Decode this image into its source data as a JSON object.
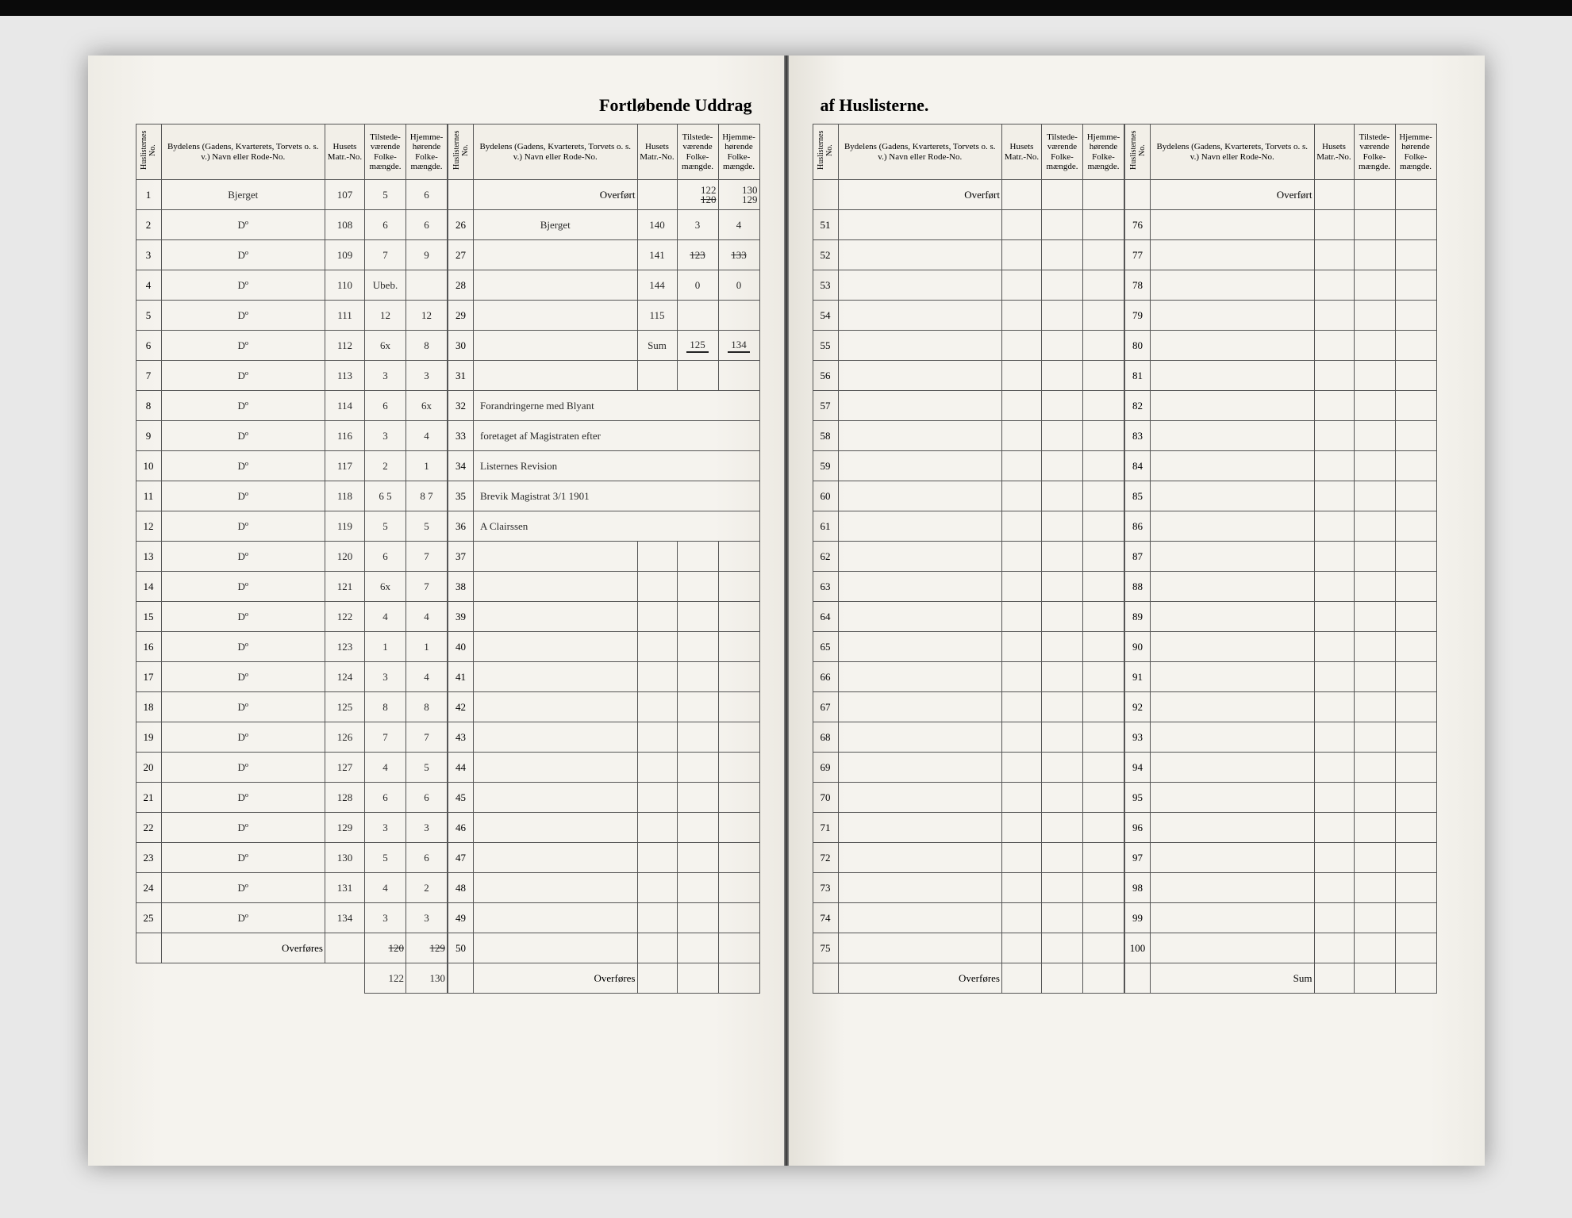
{
  "document": {
    "title_left": "Fortløbende Uddrag",
    "title_right": "af Huslisterne.",
    "headers": {
      "huslist_no": "Huslisternes No.",
      "bydel": "Bydelens (Gadens, Kvarterets, Torvets o. s. v.) Navn eller Rode-No.",
      "matr": "Husets Matr.-No.",
      "tilstede": "Tilstede-værende Folke-mængde.",
      "hjemme": "Hjemme-hørende Folke-mængde."
    },
    "overfort_label": "Overført",
    "overfores_label": "Overføres",
    "sum_label": "Sum"
  },
  "left_page": {
    "block_a": {
      "rows": [
        {
          "n": "1",
          "name": "Bjerget",
          "matr": "107",
          "t": "5",
          "h": "6"
        },
        {
          "n": "2",
          "name": "Dº",
          "matr": "108",
          "t": "6",
          "h": "6"
        },
        {
          "n": "3",
          "name": "Dº",
          "matr": "109",
          "t": "7",
          "h": "9"
        },
        {
          "n": "4",
          "name": "Dº",
          "matr": "110",
          "t": "Ubeb.",
          "h": ""
        },
        {
          "n": "5",
          "name": "Dº",
          "matr": "111",
          "t": "12",
          "h": "12"
        },
        {
          "n": "6",
          "name": "Dº",
          "matr": "112",
          "t": "6x",
          "h": "8"
        },
        {
          "n": "7",
          "name": "Dº",
          "matr": "113",
          "t": "3",
          "h": "3"
        },
        {
          "n": "8",
          "name": "Dº",
          "matr": "114",
          "t": "6",
          "h": "6x"
        },
        {
          "n": "9",
          "name": "Dº",
          "matr": "116",
          "t": "3",
          "h": "4"
        },
        {
          "n": "10",
          "name": "Dº",
          "matr": "117",
          "t": "2",
          "h": "1"
        },
        {
          "n": "11",
          "name": "Dº",
          "matr": "118",
          "t": "6 5",
          "h": "8 7"
        },
        {
          "n": "12",
          "name": "Dº",
          "matr": "119",
          "t": "5",
          "h": "5"
        },
        {
          "n": "13",
          "name": "Dº",
          "matr": "120",
          "t": "6",
          "h": "7"
        },
        {
          "n": "14",
          "name": "Dº",
          "matr": "121",
          "t": "6x",
          "h": "7"
        },
        {
          "n": "15",
          "name": "Dº",
          "matr": "122",
          "t": "4",
          "h": "4"
        },
        {
          "n": "16",
          "name": "Dº",
          "matr": "123",
          "t": "1",
          "h": "1"
        },
        {
          "n": "17",
          "name": "Dº",
          "matr": "124",
          "t": "3",
          "h": "4"
        },
        {
          "n": "18",
          "name": "Dº",
          "matr": "125",
          "t": "8",
          "h": "8"
        },
        {
          "n": "19",
          "name": "Dº",
          "matr": "126",
          "t": "7",
          "h": "7"
        },
        {
          "n": "20",
          "name": "Dº",
          "matr": "127",
          "t": "4",
          "h": "5"
        },
        {
          "n": "21",
          "name": "Dº",
          "matr": "128",
          "t": "6",
          "h": "6"
        },
        {
          "n": "22",
          "name": "Dº",
          "matr": "129",
          "t": "3",
          "h": "3"
        },
        {
          "n": "23",
          "name": "Dº",
          "matr": "130",
          "t": "5",
          "h": "6"
        },
        {
          "n": "24",
          "name": "Dº",
          "matr": "131",
          "t": "4",
          "h": "2"
        },
        {
          "n": "25",
          "name": "Dº",
          "matr": "134",
          "t": "3",
          "h": "3"
        }
      ],
      "carry": {
        "t_struck": "120",
        "h_struck": "129",
        "t": "122",
        "h": "130"
      }
    },
    "block_b": {
      "overfort": {
        "t_top": "122",
        "h_top": "130",
        "t": "120",
        "h": "129"
      },
      "rows": [
        {
          "n": "26",
          "name": "Bjerget",
          "matr": "140",
          "t": "3",
          "h": "4"
        },
        {
          "n": "27",
          "name": "",
          "matr": "141",
          "t": "123",
          "h": "133",
          "strike": true
        },
        {
          "n": "28",
          "name": "",
          "matr": "144",
          "t": "0",
          "h": "0"
        },
        {
          "n": "29",
          "name": "",
          "matr": "115",
          "t": "",
          "h": ""
        },
        {
          "n": "30",
          "name": "",
          "matr": "Sum",
          "t": "125",
          "h": "134",
          "sum": true
        },
        {
          "n": "31",
          "name": "",
          "matr": "",
          "t": "",
          "h": ""
        },
        {
          "n": "32",
          "note": "Forandringerne med Blyant"
        },
        {
          "n": "33",
          "note": "foretaget af Magistraten efter"
        },
        {
          "n": "34",
          "note": "Listernes Revision"
        },
        {
          "n": "35",
          "note": "Brevik Magistrat 3/1 1901"
        },
        {
          "n": "36",
          "note": "A Clairssen"
        },
        {
          "n": "37"
        },
        {
          "n": "38"
        },
        {
          "n": "39"
        },
        {
          "n": "40"
        },
        {
          "n": "41"
        },
        {
          "n": "42"
        },
        {
          "n": "43"
        },
        {
          "n": "44"
        },
        {
          "n": "45"
        },
        {
          "n": "46"
        },
        {
          "n": "47"
        },
        {
          "n": "48"
        },
        {
          "n": "49"
        },
        {
          "n": "50"
        }
      ]
    }
  },
  "right_page": {
    "block_c": {
      "start": 51,
      "end": 75
    },
    "block_d": {
      "start": 76,
      "end": 100
    }
  },
  "colors": {
    "page_bg": "#f5f3ee",
    "ink": "#2a2a2a",
    "rule": "#555555",
    "scan_bg": "#e8e8e8",
    "frame": "#1a1a1a"
  }
}
